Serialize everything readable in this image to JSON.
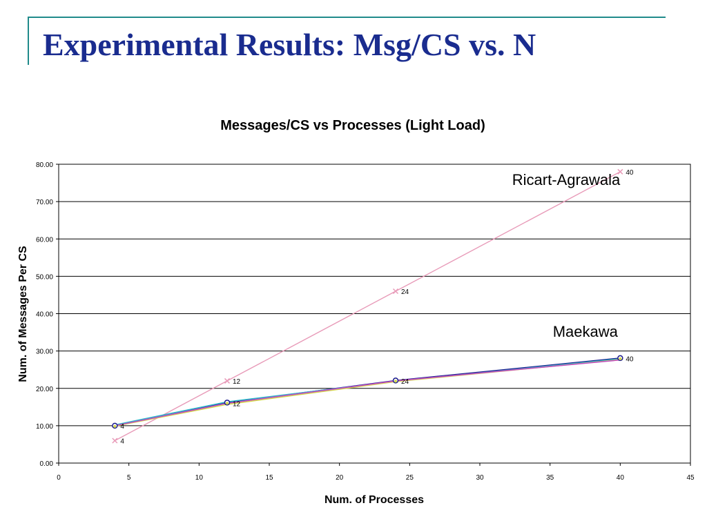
{
  "slide": {
    "title": "Experimental Results: Msg/CS vs. N"
  },
  "colors": {
    "title": "#1a2c8f",
    "frame": "#1f8a8a",
    "ricart": "#e89ab8",
    "maekawa_a": "#1a1a8c",
    "maekawa_b": "#2bb5c8",
    "maekawa_c": "#d4d84a",
    "maekawa_d": "#c04fc0"
  },
  "chart_data": {
    "type": "line",
    "title": "Messages/CS vs Processes (Light Load)",
    "xlabel": "Num. of Processes",
    "ylabel": "Num. of Messages Per CS",
    "xlim": [
      0,
      45
    ],
    "ylim": [
      0,
      80
    ],
    "x_ticks": [
      "0",
      "5",
      "10",
      "15",
      "20",
      "25",
      "30",
      "35",
      "40",
      "45"
    ],
    "y_ticks": [
      "0.00",
      "10.00",
      "20.00",
      "30.00",
      "40.00",
      "50.00",
      "60.00",
      "70.00",
      "80.00"
    ],
    "grid": "horizontal",
    "series": [
      {
        "name": "",
        "marker": "x",
        "color": "#e89ab8",
        "x": [
          4,
          12,
          24,
          40
        ],
        "y": [
          6,
          22,
          46,
          78
        ]
      },
      {
        "name": "",
        "marker": "circle",
        "color": "#1a1a8c",
        "x": [
          4,
          12,
          24,
          40
        ],
        "y": [
          10,
          16.2,
          22.1,
          28.1
        ]
      },
      {
        "name": "",
        "marker": "none",
        "color": "#2bb5c8",
        "x": [
          4,
          12,
          24,
          40
        ],
        "y": [
          10.2,
          16.4,
          21.9,
          27.9
        ]
      },
      {
        "name": "",
        "marker": "none",
        "color": "#d4d84a",
        "x": [
          4,
          12,
          24,
          40
        ],
        "y": [
          9.9,
          15.7,
          21.8,
          27.7
        ]
      },
      {
        "name": "",
        "marker": "none",
        "color": "#c04fc0",
        "x": [
          4,
          12,
          24,
          40
        ],
        "y": [
          10,
          16,
          22,
          27.6
        ]
      }
    ],
    "data_labels": [
      {
        "x": 4,
        "y": 6,
        "text": "4"
      },
      {
        "x": 12,
        "y": 22,
        "text": "12"
      },
      {
        "x": 24,
        "y": 46,
        "text": "24"
      },
      {
        "x": 40,
        "y": 78,
        "text": "40"
      },
      {
        "x": 4,
        "y": 10,
        "text": "4"
      },
      {
        "x": 12,
        "y": 16,
        "text": "12"
      },
      {
        "x": 24,
        "y": 22,
        "text": "24"
      },
      {
        "x": 40,
        "y": 28,
        "text": "40"
      }
    ],
    "annotations": [
      {
        "text": "Ricart-Agrawala",
        "x": 32.3,
        "y": 74.5
      },
      {
        "text": "Maekawa",
        "x": 35.2,
        "y": 33.8
      }
    ]
  }
}
